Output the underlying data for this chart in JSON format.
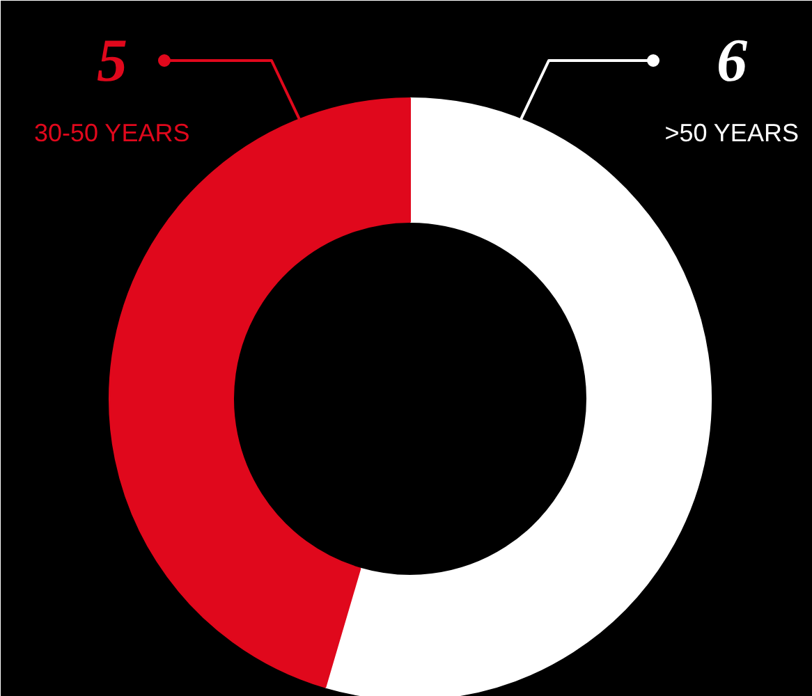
{
  "chart_data": {
    "type": "donut",
    "categories": [
      ">50 YEARS",
      "30-50 YEARS"
    ],
    "values": [
      6,
      5
    ],
    "colors": [
      "#ffffff",
      "#e0081c"
    ],
    "data_labels": true
  }
}
